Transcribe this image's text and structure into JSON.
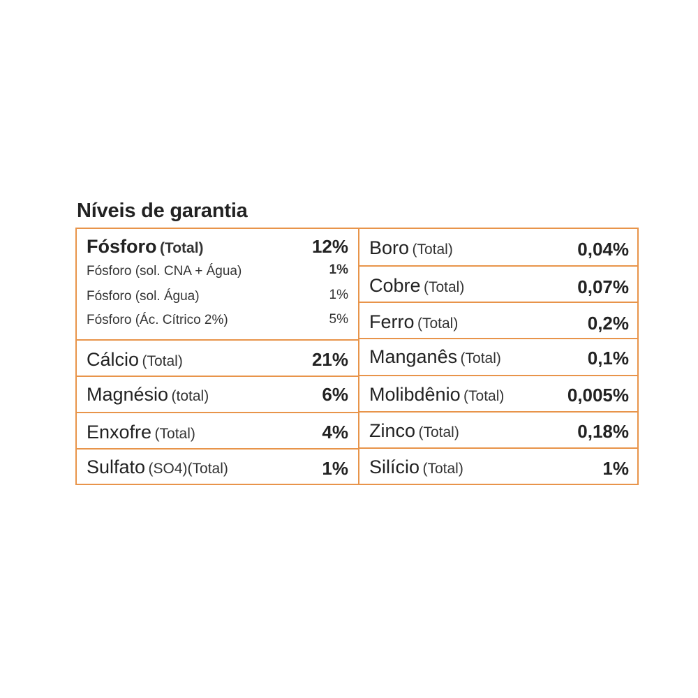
{
  "title": "Níveis de garantia",
  "colors": {
    "border": "#e8944a",
    "text": "#222222"
  },
  "left": {
    "fosforo": {
      "name": "Fósforo",
      "qualifier": "(Total)",
      "value": "12%",
      "subs": [
        {
          "label": "Fósforo (sol. CNA + Água)",
          "value": "1%"
        },
        {
          "label": "Fósforo (sol. Água)",
          "value": "1%"
        },
        {
          "label": "Fósforo (Ác. Cítrico 2%)",
          "value": "5%"
        }
      ]
    },
    "rows": [
      {
        "name": "Cálcio",
        "qualifier": "(Total)",
        "value": "21%"
      },
      {
        "name": "Magnésio",
        "qualifier": "(total)",
        "value": "6%"
      },
      {
        "name": "Enxofre",
        "qualifier": "(Total)",
        "value": "4%"
      },
      {
        "name": "Sulfato",
        "qualifier": "(SO4)(Total)",
        "value": "1%"
      }
    ]
  },
  "right": {
    "rows": [
      {
        "name": "Boro",
        "qualifier": "(Total)",
        "value": "0,04%"
      },
      {
        "name": "Cobre",
        "qualifier": "(Total)",
        "value": "0,07%"
      },
      {
        "name": "Ferro",
        "qualifier": "(Total)",
        "value": "0,2%"
      },
      {
        "name": "Manganês",
        "qualifier": "(Total)",
        "value": "0,1%"
      },
      {
        "name": "Molibdênio",
        "qualifier": "(Total)",
        "value": "0,005%"
      },
      {
        "name": "Zinco",
        "qualifier": "(Total)",
        "value": "0,18%"
      },
      {
        "name": "Silício",
        "qualifier": "(Total)",
        "value": "1%"
      }
    ]
  }
}
